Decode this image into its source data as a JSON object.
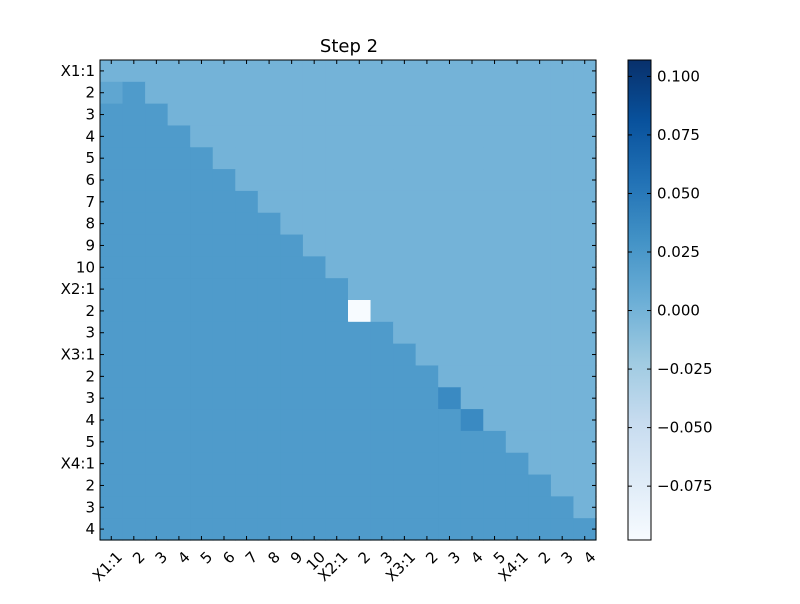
{
  "chart_data": {
    "type": "heatmap",
    "title": "Step 2",
    "row_labels": [
      "X1:1",
      "2",
      "3",
      "4",
      "5",
      "6",
      "7",
      "8",
      "9",
      "10",
      "X2:1",
      "2",
      "3",
      "X3:1",
      "2",
      "3",
      "4",
      "5",
      "X4:1",
      "2",
      "3",
      "4"
    ],
    "col_labels": [
      "X1:1",
      "2",
      "3",
      "4",
      "5",
      "6",
      "7",
      "8",
      "9",
      "10",
      "X2:1",
      "2",
      "3",
      "X3:1",
      "2",
      "3",
      "4",
      "5",
      "X4:1",
      "2",
      "3",
      "4"
    ],
    "colormap": "Blues",
    "vmin": -0.098,
    "vmax": 0.107,
    "colorbar_ticks": [
      "0.100",
      "0.075",
      "0.050",
      "0.025",
      "0.000",
      "−0.025",
      "−0.050",
      "−0.075"
    ],
    "colorbar_tick_values": [
      0.1,
      0.075,
      0.05,
      0.025,
      0.0,
      -0.025,
      -0.05,
      -0.075
    ],
    "values_rule": "cell value by position relative to diagonal; special cells override",
    "above_diagonal_value": 0.0,
    "diagonal_and_below_value": 0.022,
    "row0_col0_value": 0.0,
    "special_cells": [
      {
        "row": 1,
        "col": 0,
        "value": 0.012
      },
      {
        "row": 11,
        "col": 11,
        "value": -0.098
      },
      {
        "row": 15,
        "col": 15,
        "value": 0.036
      },
      {
        "row": 16,
        "col": 16,
        "value": 0.036
      }
    ]
  }
}
